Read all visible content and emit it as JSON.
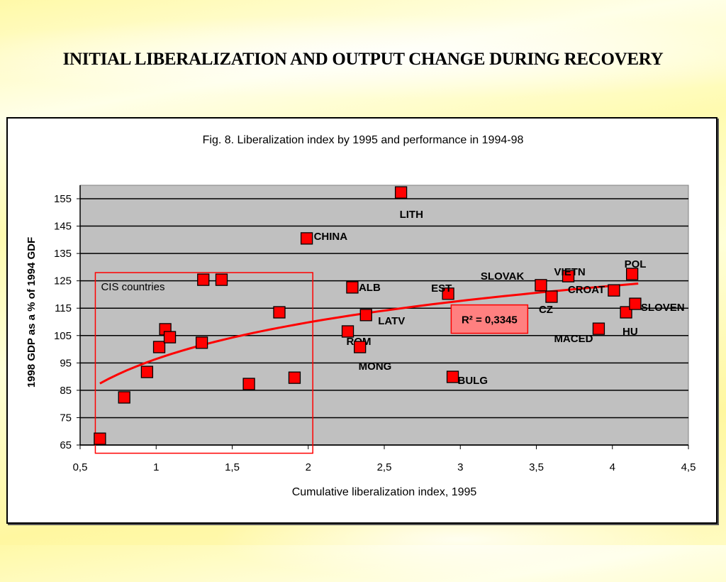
{
  "slide": {
    "title": "INITIAL LIBERALIZATION AND OUTPUT CHANGE DURING RECOVERY"
  },
  "chart_data": {
    "type": "scatter",
    "title": "Fig. 8. Liberalization index by 1995 and performance in 1994-98",
    "xlabel": "Cumulative liberalization index, 1995",
    "ylabel": "1998 GDP as a % of 1994 GDF",
    "xlim": [
      0.5,
      4.5
    ],
    "ylim": [
      65,
      155
    ],
    "x_ticks": [
      0.5,
      1,
      1.5,
      2,
      2.5,
      3,
      3.5,
      4,
      4.5
    ],
    "x_tick_labels": [
      "0,5",
      "1",
      "1,5",
      "2",
      "2,5",
      "3",
      "3,5",
      "4",
      "4,5"
    ],
    "y_ticks": [
      65,
      75,
      85,
      95,
      105,
      115,
      125,
      135,
      145,
      155
    ],
    "y_tick_labels": [
      "65",
      "75",
      "85",
      "95",
      "105",
      "115",
      "125",
      "135",
      "145",
      "155"
    ],
    "grid": "horizontal",
    "plot_background": "#c0c0c0",
    "marker_color": "#ff0000",
    "trendline": {
      "type": "logarithmic",
      "color": "#ff0000",
      "x_range": [
        0.63,
        4.17
      ],
      "y_at_start": 87.5,
      "y_at_end": 124,
      "r_squared_label": "R² = 0,3345",
      "r_squared": 0.3345
    },
    "annotation_box": {
      "label": "CIS countries",
      "x_range": [
        0.6,
        2.03
      ],
      "y_range": [
        62,
        128
      ],
      "color": "#ff0000"
    },
    "points": [
      {
        "x": 0.63,
        "y": 67.3,
        "label": ""
      },
      {
        "x": 0.79,
        "y": 82.4,
        "label": ""
      },
      {
        "x": 0.94,
        "y": 91.7,
        "label": ""
      },
      {
        "x": 1.02,
        "y": 100.8,
        "label": ""
      },
      {
        "x": 1.06,
        "y": 107.3,
        "label": ""
      },
      {
        "x": 1.09,
        "y": 104.4,
        "label": ""
      },
      {
        "x": 1.3,
        "y": 102.4,
        "label": ""
      },
      {
        "x": 1.31,
        "y": 125.4,
        "label": ""
      },
      {
        "x": 1.43,
        "y": 125.4,
        "label": ""
      },
      {
        "x": 1.61,
        "y": 87.3,
        "label": ""
      },
      {
        "x": 1.81,
        "y": 113.5,
        "label": ""
      },
      {
        "x": 1.91,
        "y": 89.6,
        "label": ""
      },
      {
        "x": 1.99,
        "y": 140.5,
        "label": "CHINA"
      },
      {
        "x": 2.29,
        "y": 122.6,
        "label": "ALB"
      },
      {
        "x": 2.26,
        "y": 106.5,
        "label": "ROM"
      },
      {
        "x": 2.38,
        "y": 112.5,
        "label": "LATV"
      },
      {
        "x": 2.34,
        "y": 100.8,
        "label": "MONG"
      },
      {
        "x": 2.61,
        "y": 157.3,
        "label": "LITH"
      },
      {
        "x": 2.92,
        "y": 120.3,
        "label": "EST"
      },
      {
        "x": 2.95,
        "y": 89.9,
        "label": "BULG"
      },
      {
        "x": 3.53,
        "y": 123.4,
        "label": "SLOVAK"
      },
      {
        "x": 3.6,
        "y": 119.2,
        "label": "CZ"
      },
      {
        "x": 3.71,
        "y": 126.7,
        "label": "VIETN"
      },
      {
        "x": 3.91,
        "y": 107.5,
        "label": "MACED"
      },
      {
        "x": 4.01,
        "y": 121.5,
        "label": "CROAT"
      },
      {
        "x": 4.09,
        "y": 113.5,
        "label": "HU"
      },
      {
        "x": 4.13,
        "y": 127.5,
        "label": "POL"
      },
      {
        "x": 4.15,
        "y": 116.6,
        "label": "SLOVEN"
      }
    ]
  }
}
